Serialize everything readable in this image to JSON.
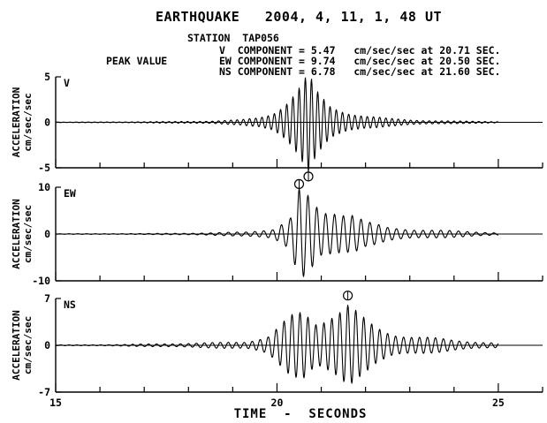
{
  "header": {
    "title": "EARTHQUAKE   2004, 4, 11, 1, 48 UT",
    "station": "STATION  TAP056",
    "peak_label": "PEAK VALUE",
    "peak_lines": [
      "V  COMPONENT = 5.47   cm/sec/sec at 20.71 SEC.",
      "EW COMPONENT = 9.74   cm/sec/sec at 20.50 SEC.",
      "NS COMPONENT = 6.78   cm/sec/sec at 21.60 SEC."
    ]
  },
  "x_axis_label": "TIME  -  SECONDS",
  "chart_data": [
    {
      "type": "line",
      "component": "V",
      "ylabel": [
        "ACCELERATION",
        "cm/sec/sec"
      ],
      "xlim": [
        15,
        26
      ],
      "ylim": [
        -5,
        5
      ],
      "yticks": [
        "5",
        "0",
        "-5"
      ],
      "xticks": [],
      "peak": {
        "value": 5.47,
        "time": 20.71,
        "sign": -1
      },
      "envelope": [
        [
          15.0,
          0.02
        ],
        [
          16.5,
          0.05
        ],
        [
          17.5,
          0.08
        ],
        [
          18.5,
          0.15
        ],
        [
          19.2,
          0.3
        ],
        [
          19.6,
          0.6
        ],
        [
          19.9,
          1.2
        ],
        [
          20.2,
          2.5
        ],
        [
          20.45,
          3.8
        ],
        [
          20.71,
          5.47
        ],
        [
          20.9,
          3.5
        ],
        [
          21.2,
          2.0
        ],
        [
          21.6,
          1.3
        ],
        [
          22.0,
          0.8
        ],
        [
          22.5,
          0.45
        ],
        [
          23.0,
          0.3
        ],
        [
          24.0,
          0.15
        ],
        [
          25.0,
          0.08
        ]
      ],
      "dominant_period_s": 0.14
    },
    {
      "type": "line",
      "component": "EW",
      "ylabel": [
        "ACCELERATION",
        "cm/sec/sec"
      ],
      "xlim": [
        15,
        26
      ],
      "ylim": [
        -10,
        10
      ],
      "yticks": [
        "10",
        "0",
        "-10"
      ],
      "xticks": [],
      "peak": {
        "value": 9.74,
        "time": 20.5,
        "sign": 1
      },
      "envelope": [
        [
          15.0,
          0.05
        ],
        [
          17.0,
          0.1
        ],
        [
          18.5,
          0.25
        ],
        [
          19.3,
          0.5
        ],
        [
          19.9,
          1.2
        ],
        [
          20.3,
          3.5
        ],
        [
          20.5,
          9.74
        ],
        [
          20.7,
          8.5
        ],
        [
          21.0,
          5.5
        ],
        [
          21.3,
          6.0
        ],
        [
          21.7,
          5.0
        ],
        [
          22.0,
          2.8
        ],
        [
          22.5,
          1.5
        ],
        [
          23.0,
          1.2
        ],
        [
          24.0,
          0.7
        ],
        [
          25.0,
          0.3
        ]
      ],
      "dominant_period_s": 0.2
    },
    {
      "type": "line",
      "component": "NS",
      "ylabel": [
        "ACCELERATION",
        "cm/sec/sec"
      ],
      "xlim": [
        15,
        26
      ],
      "ylim": [
        -7,
        7
      ],
      "yticks": [
        "7",
        "0",
        "-7"
      ],
      "xticks": [
        "15",
        "20",
        "25"
      ],
      "peak": {
        "value": 6.78,
        "time": 21.6,
        "sign": 1
      },
      "envelope": [
        [
          15.0,
          0.05
        ],
        [
          16.5,
          0.12
        ],
        [
          17.5,
          0.25
        ],
        [
          18.5,
          0.4
        ],
        [
          19.3,
          0.6
        ],
        [
          19.8,
          1.5
        ],
        [
          20.3,
          4.5
        ],
        [
          20.6,
          5.5
        ],
        [
          20.9,
          4.0
        ],
        [
          21.2,
          5.5
        ],
        [
          21.6,
          6.78
        ],
        [
          21.9,
          4.5
        ],
        [
          22.2,
          3.0
        ],
        [
          22.6,
          2.0
        ],
        [
          23.0,
          1.6
        ],
        [
          23.5,
          1.2
        ],
        [
          24.0,
          0.8
        ],
        [
          25.0,
          0.4
        ]
      ],
      "dominant_period_s": 0.18
    }
  ]
}
